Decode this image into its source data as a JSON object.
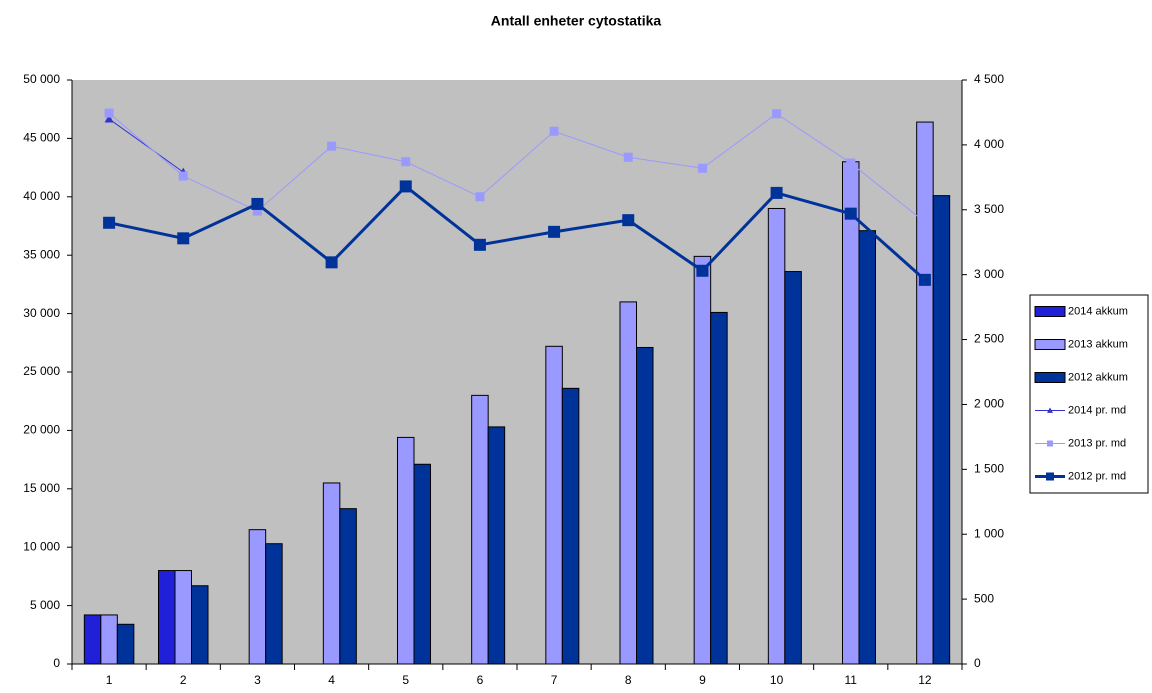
{
  "chart_data": {
    "type": "bar",
    "title": "Antall enheter cytostatika",
    "categories": [
      "1",
      "2",
      "3",
      "4",
      "5",
      "6",
      "7",
      "8",
      "9",
      "10",
      "11",
      "12"
    ],
    "series": [
      {
        "name": "2014 akkum",
        "color": "#2020d8",
        "values": [
          4200,
          8000,
          null,
          null,
          null,
          null,
          null,
          null,
          null,
          null,
          null,
          null
        ]
      },
      {
        "name": "2013 akkum",
        "color": "#9999ff",
        "values": [
          4200,
          8000,
          11500,
          15500,
          19400,
          23000,
          27200,
          31000,
          34900,
          39000,
          43000,
          46400
        ]
      },
      {
        "name": "2012 akkum",
        "color": "#003399",
        "values": [
          3400,
          6700,
          10300,
          13300,
          17100,
          20300,
          23600,
          27100,
          30100,
          33600,
          37100,
          40100
        ]
      },
      {
        "name": "2014 pr. md",
        "type": "line",
        "axis": "y2",
        "color": "#3333cc",
        "marker": "triangle",
        "line_width": 1,
        "values": [
          4200,
          3790,
          null,
          null,
          null,
          null,
          null,
          null,
          null,
          null,
          null,
          null
        ]
      },
      {
        "name": "2013 pr. md",
        "type": "line",
        "axis": "y2",
        "color": "#9999ff",
        "marker": "square",
        "line_width": 1,
        "values": [
          4245,
          3760,
          3490,
          3990,
          3870,
          3600,
          4105,
          3905,
          3820,
          4240,
          3860,
          3405
        ]
      },
      {
        "name": "2012 pr. md",
        "type": "line",
        "axis": "y2",
        "color": "#003399",
        "marker": "square",
        "line_width": 3,
        "values": [
          3400,
          3280,
          3545,
          3095,
          3680,
          3230,
          3330,
          3420,
          3030,
          3630,
          3470,
          2960
        ]
      }
    ],
    "ylim": [
      0,
      50000
    ],
    "yticks": [
      0,
      {
        "value": 5000,
        "label": "5 000"
      },
      {
        "value": 10000,
        "label": "10 000"
      },
      {
        "value": 15000,
        "label": "15 000"
      },
      {
        "value": 20000,
        "label": "20 000"
      },
      {
        "value": 25000,
        "label": "25 000"
      },
      {
        "value": 30000,
        "label": "30 000"
      },
      {
        "value": 35000,
        "label": "35 000"
      },
      {
        "value": 40000,
        "label": "40 000"
      },
      {
        "value": 45000,
        "label": "45 000"
      },
      {
        "value": 50000,
        "label": "50 000"
      }
    ],
    "y2lim": [
      0,
      4500
    ],
    "y2ticks": [
      0,
      500,
      {
        "value": 1000,
        "label": "1 000"
      },
      {
        "value": 1500,
        "label": "1 500"
      },
      {
        "value": 2000,
        "label": "2 000"
      },
      {
        "value": 2500,
        "label": "2 500"
      },
      {
        "value": 3000,
        "label": "3 000"
      },
      {
        "value": 3500,
        "label": "3 500"
      },
      {
        "value": 4000,
        "label": "4 000"
      },
      {
        "value": 4500,
        "label": "4 500"
      }
    ],
    "grid": false,
    "plot_background": "#c0c0c0",
    "legend": "right"
  }
}
